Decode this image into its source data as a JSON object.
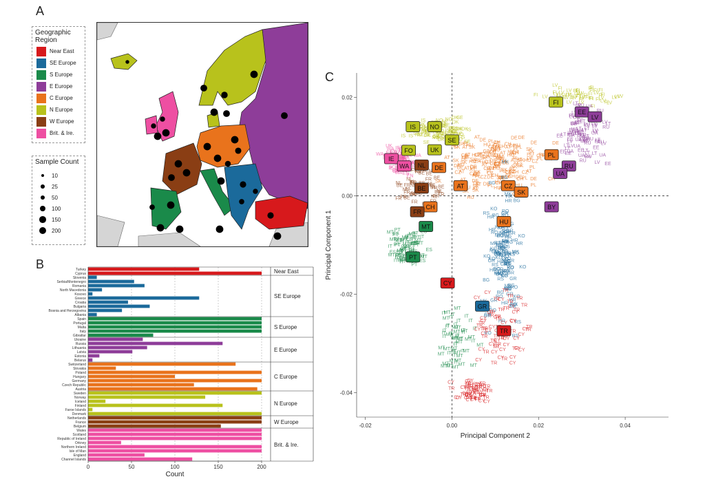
{
  "panels": {
    "a": "A",
    "b": "B",
    "c": "C"
  },
  "region_legend": {
    "title": "Geographic Region",
    "items": [
      {
        "label": "Near East",
        "color": "#d7191c"
      },
      {
        "label": "SE Europe",
        "color": "#1b6a9b"
      },
      {
        "label": "S Europe",
        "color": "#1a8a4a"
      },
      {
        "label": "E Europe",
        "color": "#8e3d99"
      },
      {
        "label": "C Europe",
        "color": "#e9731c"
      },
      {
        "label": "N Europe",
        "color": "#b8c21c"
      },
      {
        "label": "W Europe",
        "color": "#8a3e14"
      },
      {
        "label": "Brit. & Ire.",
        "color": "#ee4fa2"
      }
    ]
  },
  "sample_legend": {
    "title": "Sample Count",
    "items": [
      {
        "label": "10",
        "value": 10
      },
      {
        "label": "25",
        "value": 25
      },
      {
        "label": "50",
        "value": 50
      },
      {
        "label": "100",
        "value": 100
      },
      {
        "label": "150",
        "value": 150
      },
      {
        "label": "200",
        "value": 200
      }
    ]
  },
  "chart_data": [
    {
      "type": "bar",
      "orientation": "horizontal",
      "xlabel": "Count",
      "xlim": [
        0,
        200
      ],
      "xticks": [
        "0",
        "50",
        "100",
        "150",
        "200"
      ],
      "groups": [
        {
          "region": "Near East",
          "color": "#d7191c",
          "categories": [
            "Turkey",
            "Cyprus"
          ],
          "values": [
            128,
            200
          ]
        },
        {
          "region": "SE Europe",
          "color": "#1b6a9b",
          "categories": [
            "Slovenia",
            "Serbia/Montenegro",
            "Romania",
            "North Macedonia",
            "Kosovo",
            "Greece",
            "Croatia",
            "Bulgaria",
            "Bosnia and Herzegovina",
            "Albania"
          ],
          "values": [
            10,
            53,
            65,
            16,
            5,
            128,
            46,
            71,
            39,
            10
          ]
        },
        {
          "region": "S Europe",
          "color": "#1a8a4a",
          "categories": [
            "Spain",
            "Portugal",
            "Malta",
            "Italy",
            "Gibraltar"
          ],
          "values": [
            200,
            200,
            200,
            200,
            75
          ]
        },
        {
          "region": "E Europe",
          "color": "#8e3d99",
          "categories": [
            "Ukraine",
            "Russia",
            "Lithuania",
            "Latvia",
            "Estonia",
            "Belarus"
          ],
          "values": [
            63,
            155,
            68,
            51,
            13,
            5
          ]
        },
        {
          "region": "C Europe",
          "color": "#e9731c",
          "categories": [
            "Switzerland",
            "Slovakia",
            "Poland",
            "Hungary",
            "Germany",
            "Czech Republic",
            "Austria"
          ],
          "values": [
            170,
            32,
            200,
            100,
            200,
            122,
            195
          ]
        },
        {
          "region": "N Europe",
          "color": "#b8c21c",
          "categories": [
            "Sweden",
            "Norway",
            "Iceland",
            "Finland",
            "Faroe Islands",
            "Denmark"
          ],
          "values": [
            200,
            135,
            20,
            155,
            5,
            200
          ]
        },
        {
          "region": "W Europe",
          "color": "#8a3e14",
          "categories": [
            "Netherlands",
            "France",
            "Belgium"
          ],
          "values": [
            200,
            200,
            153
          ]
        },
        {
          "region": "Brit. & Ire.",
          "color": "#ee4fa2",
          "categories": [
            "Wales",
            "Scotland",
            "Republic of Ireland",
            "Orkney",
            "Northern Ireland",
            "Isle of Man",
            "England",
            "Channel Islands"
          ],
          "values": [
            200,
            200,
            200,
            38,
            200,
            200,
            65,
            120
          ]
        }
      ]
    },
    {
      "type": "scatter",
      "xlabel": "Principal Component 2",
      "ylabel": "Principal Component 1",
      "xlim": [
        -0.022,
        0.05
      ],
      "ylim": [
        -0.045,
        0.025
      ],
      "xticks": [
        -0.02,
        0.0,
        0.02,
        0.04
      ],
      "xtick_labels": [
        "-0.02",
        "0.00",
        "0.02",
        "0.04"
      ],
      "yticks": [
        0.02,
        0.0,
        -0.02,
        -0.04
      ],
      "ytick_labels": [
        "0.02",
        "0.00",
        "-0.02",
        "-0.04"
      ],
      "centroids": [
        {
          "label": "FI",
          "x": 0.024,
          "y": 0.019,
          "color": "#b8c21c"
        },
        {
          "label": "EE",
          "x": 0.03,
          "y": 0.017,
          "color": "#8e3d99"
        },
        {
          "label": "LV",
          "x": 0.033,
          "y": 0.016,
          "color": "#8e3d99"
        },
        {
          "label": "IS",
          "x": -0.009,
          "y": 0.014,
          "color": "#b8c21c"
        },
        {
          "label": "NO",
          "x": -0.004,
          "y": 0.014,
          "color": "#b8c21c"
        },
        {
          "label": "SE",
          "x": 0.0,
          "y": 0.0113,
          "color": "#b8c21c"
        },
        {
          "label": "UK",
          "x": -0.004,
          "y": 0.0093,
          "color": "#b8c21c"
        },
        {
          "label": "FO",
          "x": -0.01,
          "y": 0.0092,
          "color": "#b8c21c"
        },
        {
          "label": "IE",
          "x": -0.014,
          "y": 0.0075,
          "color": "#ee4fa2"
        },
        {
          "label": "WA",
          "x": -0.011,
          "y": 0.006,
          "color": "#ee4fa2"
        },
        {
          "label": "NL",
          "x": -0.007,
          "y": 0.0062,
          "color": "#8a3e14"
        },
        {
          "label": "DE",
          "x": -0.003,
          "y": 0.0057,
          "color": "#e9731c"
        },
        {
          "label": "PL",
          "x": 0.023,
          "y": 0.0083,
          "color": "#e9731c"
        },
        {
          "label": "RU",
          "x": 0.027,
          "y": 0.006,
          "color": "#8e3d99"
        },
        {
          "label": "UA",
          "x": 0.025,
          "y": 0.0045,
          "color": "#8e3d99"
        },
        {
          "label": "BE",
          "x": -0.007,
          "y": 0.0015,
          "color": "#8a3e14"
        },
        {
          "label": "AT",
          "x": 0.002,
          "y": 0.002,
          "color": "#e9731c"
        },
        {
          "label": "CZ",
          "x": 0.013,
          "y": 0.002,
          "color": "#e9731c"
        },
        {
          "label": "SK",
          "x": 0.016,
          "y": 0.0007,
          "color": "#e9731c"
        },
        {
          "label": "BY",
          "x": 0.023,
          "y": -0.0023,
          "color": "#8e3d99"
        },
        {
          "label": "CH",
          "x": -0.005,
          "y": -0.0023,
          "color": "#e9731c"
        },
        {
          "label": "FR",
          "x": -0.008,
          "y": -0.0033,
          "color": "#8a3e14"
        },
        {
          "label": "HU",
          "x": 0.012,
          "y": -0.0053,
          "color": "#e9731c"
        },
        {
          "label": "MT",
          "x": -0.006,
          "y": -0.0063,
          "color": "#1a8a4a"
        },
        {
          "label": "PT",
          "x": -0.009,
          "y": -0.0125,
          "color": "#1a8a4a"
        },
        {
          "label": "CY",
          "x": -0.001,
          "y": -0.0178,
          "color": "#d7191c"
        },
        {
          "label": "GR",
          "x": 0.007,
          "y": -0.0225,
          "color": "#1b6a9b"
        },
        {
          "label": "TR",
          "x": 0.012,
          "y": -0.0275,
          "color": "#d7191c"
        }
      ],
      "clusters": [
        {
          "region": "Brit. & Ire.",
          "color": "#ee4fa2",
          "cx": -0.012,
          "cy": 0.007,
          "sx": 0.0025,
          "sy": 0.0018,
          "n": 90,
          "codes": [
            "WA",
            "IE",
            "SC",
            "EN",
            "UK"
          ]
        },
        {
          "region": "N Europe",
          "color": "#b8c21c",
          "cx": -0.002,
          "cy": 0.013,
          "sx": 0.005,
          "sy": 0.0015,
          "n": 80,
          "codes": [
            "NO",
            "SE",
            "DK",
            "IS"
          ]
        },
        {
          "region": "N Europe",
          "color": "#b8c21c",
          "cx": 0.03,
          "cy": 0.02,
          "sx": 0.006,
          "sy": 0.0012,
          "n": 55,
          "codes": [
            "FI",
            "LV"
          ]
        },
        {
          "region": "E Europe",
          "color": "#8e3d99",
          "cx": 0.03,
          "cy": 0.012,
          "sx": 0.004,
          "sy": 0.004,
          "n": 80,
          "codes": [
            "EE",
            "LV",
            "RU",
            "LT",
            "UA"
          ]
        },
        {
          "region": "C Europe",
          "color": "#e9731c",
          "cx": 0.01,
          "cy": 0.006,
          "sx": 0.008,
          "sy": 0.004,
          "n": 170,
          "codes": [
            "DE",
            "PL",
            "AT",
            "CZ",
            "CH",
            "HU",
            "SK"
          ]
        },
        {
          "region": "W Europe",
          "color": "#8a3e14",
          "cx": -0.007,
          "cy": 0.002,
          "sx": 0.003,
          "sy": 0.003,
          "n": 45,
          "codes": [
            "FR",
            "BE",
            "NL"
          ]
        },
        {
          "region": "S Europe",
          "color": "#1a8a4a",
          "cx": -0.01,
          "cy": -0.011,
          "sx": 0.003,
          "sy": 0.003,
          "n": 80,
          "codes": [
            "ES",
            "PT",
            "IT",
            "MT"
          ]
        },
        {
          "region": "S Europe",
          "color": "#1a8a4a",
          "cx": 0.001,
          "cy": -0.03,
          "sx": 0.003,
          "sy": 0.005,
          "n": 60,
          "codes": [
            "IT",
            "MT"
          ]
        },
        {
          "region": "SE Europe",
          "color": "#1b6a9b",
          "cx": 0.012,
          "cy": -0.012,
          "sx": 0.003,
          "sy": 0.009,
          "n": 130,
          "codes": [
            "GR",
            "BG",
            "RO",
            "RS",
            "HR",
            "KO",
            "MK"
          ]
        },
        {
          "region": "Near East",
          "color": "#d7191c",
          "cx": 0.012,
          "cy": -0.027,
          "sx": 0.004,
          "sy": 0.005,
          "n": 70,
          "codes": [
            "TR",
            "CY"
          ]
        },
        {
          "region": "Near East",
          "color": "#d7191c",
          "cx": 0.005,
          "cy": -0.04,
          "sx": 0.003,
          "sy": 0.0015,
          "n": 55,
          "codes": [
            "CY",
            "TR"
          ]
        }
      ]
    }
  ]
}
